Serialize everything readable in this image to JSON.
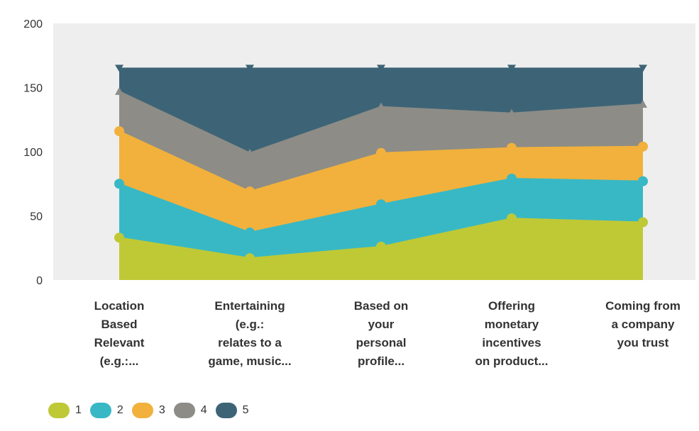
{
  "chart_data": {
    "type": "area",
    "stacked": true,
    "categories": [
      "Location\nBased\nRelevant\n(e.g.:...",
      "Entertaining\n(e.g.:\nrelates to a\ngame, music...",
      "Based on\nyour\npersonal\nprofile...",
      "Offering\nmonetary\nincentives\non product...",
      "Coming from\na company\nyou trust"
    ],
    "series": [
      {
        "name": "1",
        "values": [
          33,
          17,
          26,
          48,
          45
        ],
        "color": "#bfc936"
      },
      {
        "name": "2",
        "values": [
          42,
          20,
          33,
          31,
          32
        ],
        "color": "#38b8c5"
      },
      {
        "name": "3",
        "values": [
          41,
          32,
          40,
          24,
          27
        ],
        "color": "#f1b13c"
      },
      {
        "name": "4",
        "values": [
          31,
          30,
          36,
          27,
          33
        ],
        "color": "#8d8c87"
      },
      {
        "name": "5",
        "values": [
          18,
          66,
          30,
          35,
          28
        ],
        "color": "#3d6476"
      }
    ],
    "ylim": [
      0,
      200
    ],
    "yticks": [
      0,
      50,
      100,
      150,
      200
    ],
    "grid": false,
    "legend": "bottom-left",
    "plot_background": "#eeeeee"
  }
}
